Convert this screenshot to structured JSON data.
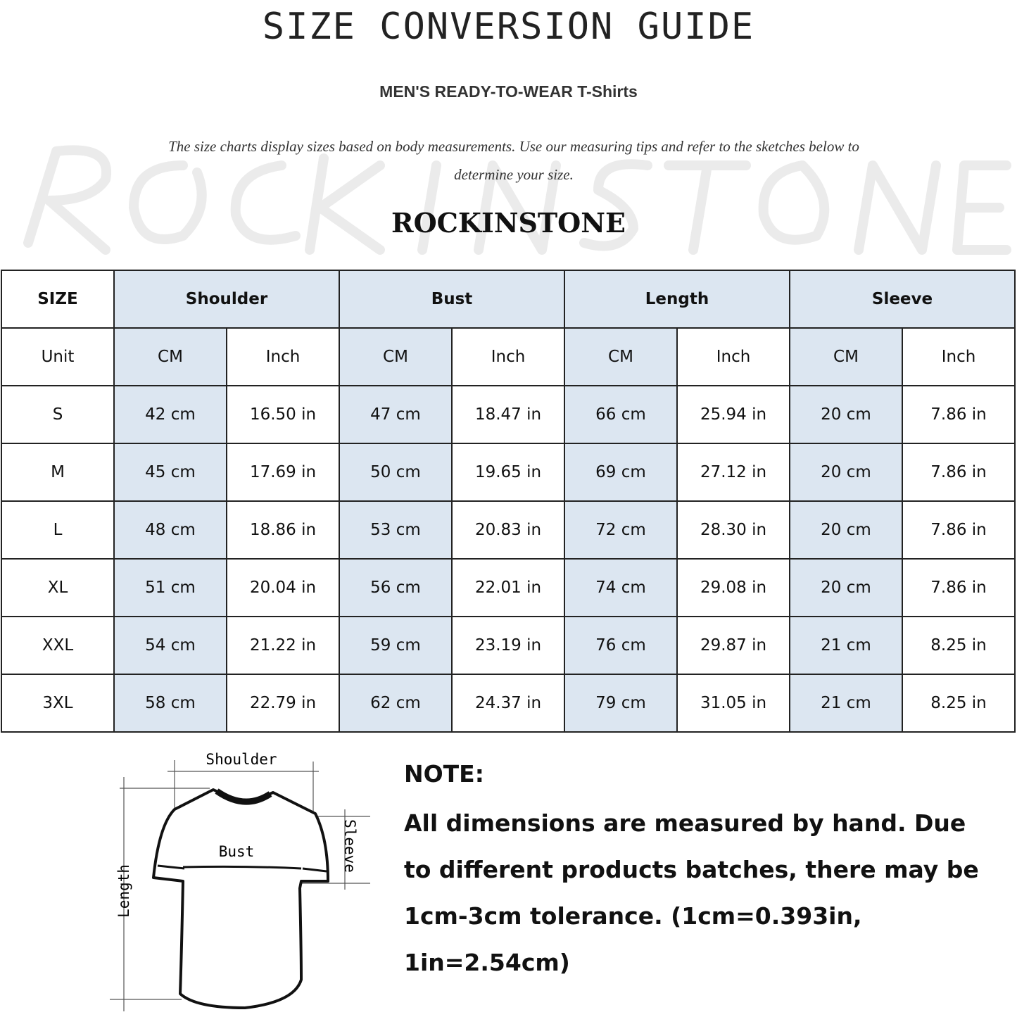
{
  "title": "SIZE CONVERSION GUIDE",
  "subtitle": "MEN'S READY-TO-WEAR T-Shirts",
  "description": "The size charts display sizes based on body measurements. Use our measuring tips and refer to the sketches below to determine your size.",
  "watermark": "ROCKINSTONE",
  "brand": "ROCKINSTONE",
  "table": {
    "size_header": "SIZE",
    "unit_label": "Unit",
    "groups": [
      "Shoulder",
      "Bust",
      "Length",
      "Sleeve"
    ],
    "units": [
      "CM",
      "Inch",
      "CM",
      "Inch",
      "CM",
      "Inch",
      "CM",
      "Inch"
    ],
    "rows": [
      {
        "size": "S",
        "values": [
          "42 cm",
          "16.50 in",
          "47 cm",
          "18.47  in",
          "66 cm",
          "25.94  in",
          "20 cm",
          "7.86  in"
        ]
      },
      {
        "size": "M",
        "values": [
          "45 cm",
          "17.69  in",
          "50 cm",
          "19.65  in",
          "69 cm",
          "27.12  in",
          "20 cm",
          "7.86  in"
        ]
      },
      {
        "size": "L",
        "values": [
          "48 cm",
          "18.86  in",
          "53 cm",
          "20.83  in",
          "72 cm",
          "28.30  in",
          "20 cm",
          "7.86  in"
        ]
      },
      {
        "size": "XL",
        "values": [
          "51 cm",
          "20.04  in",
          "56 cm",
          "22.01  in",
          "74 cm",
          "29.08  in",
          "20 cm",
          "7.86  in"
        ]
      },
      {
        "size": "XXL",
        "values": [
          "54 cm",
          "21.22  in",
          "59 cm",
          "23.19  in",
          "76 cm",
          "29.87  in",
          "21 cm",
          "8.25  in"
        ]
      },
      {
        "size": "3XL",
        "values": [
          "58 cm",
          "22.79  in",
          "62 cm",
          "24.37  in",
          "79 cm",
          "31.05  in",
          "21 cm",
          "8.25  in"
        ]
      }
    ],
    "shade_color": "#dce6f1"
  },
  "diagram": {
    "shoulder": "Shoulder",
    "bust": "Bust",
    "sleeve": "Sleeve",
    "length": "Length"
  },
  "note": {
    "title": "NOTE:",
    "body": "All dimensions are measured by hand. Due to different products batches, there may be 1cm-3cm tolerance. (1cm=0.393in, 1in=2.54cm)"
  }
}
